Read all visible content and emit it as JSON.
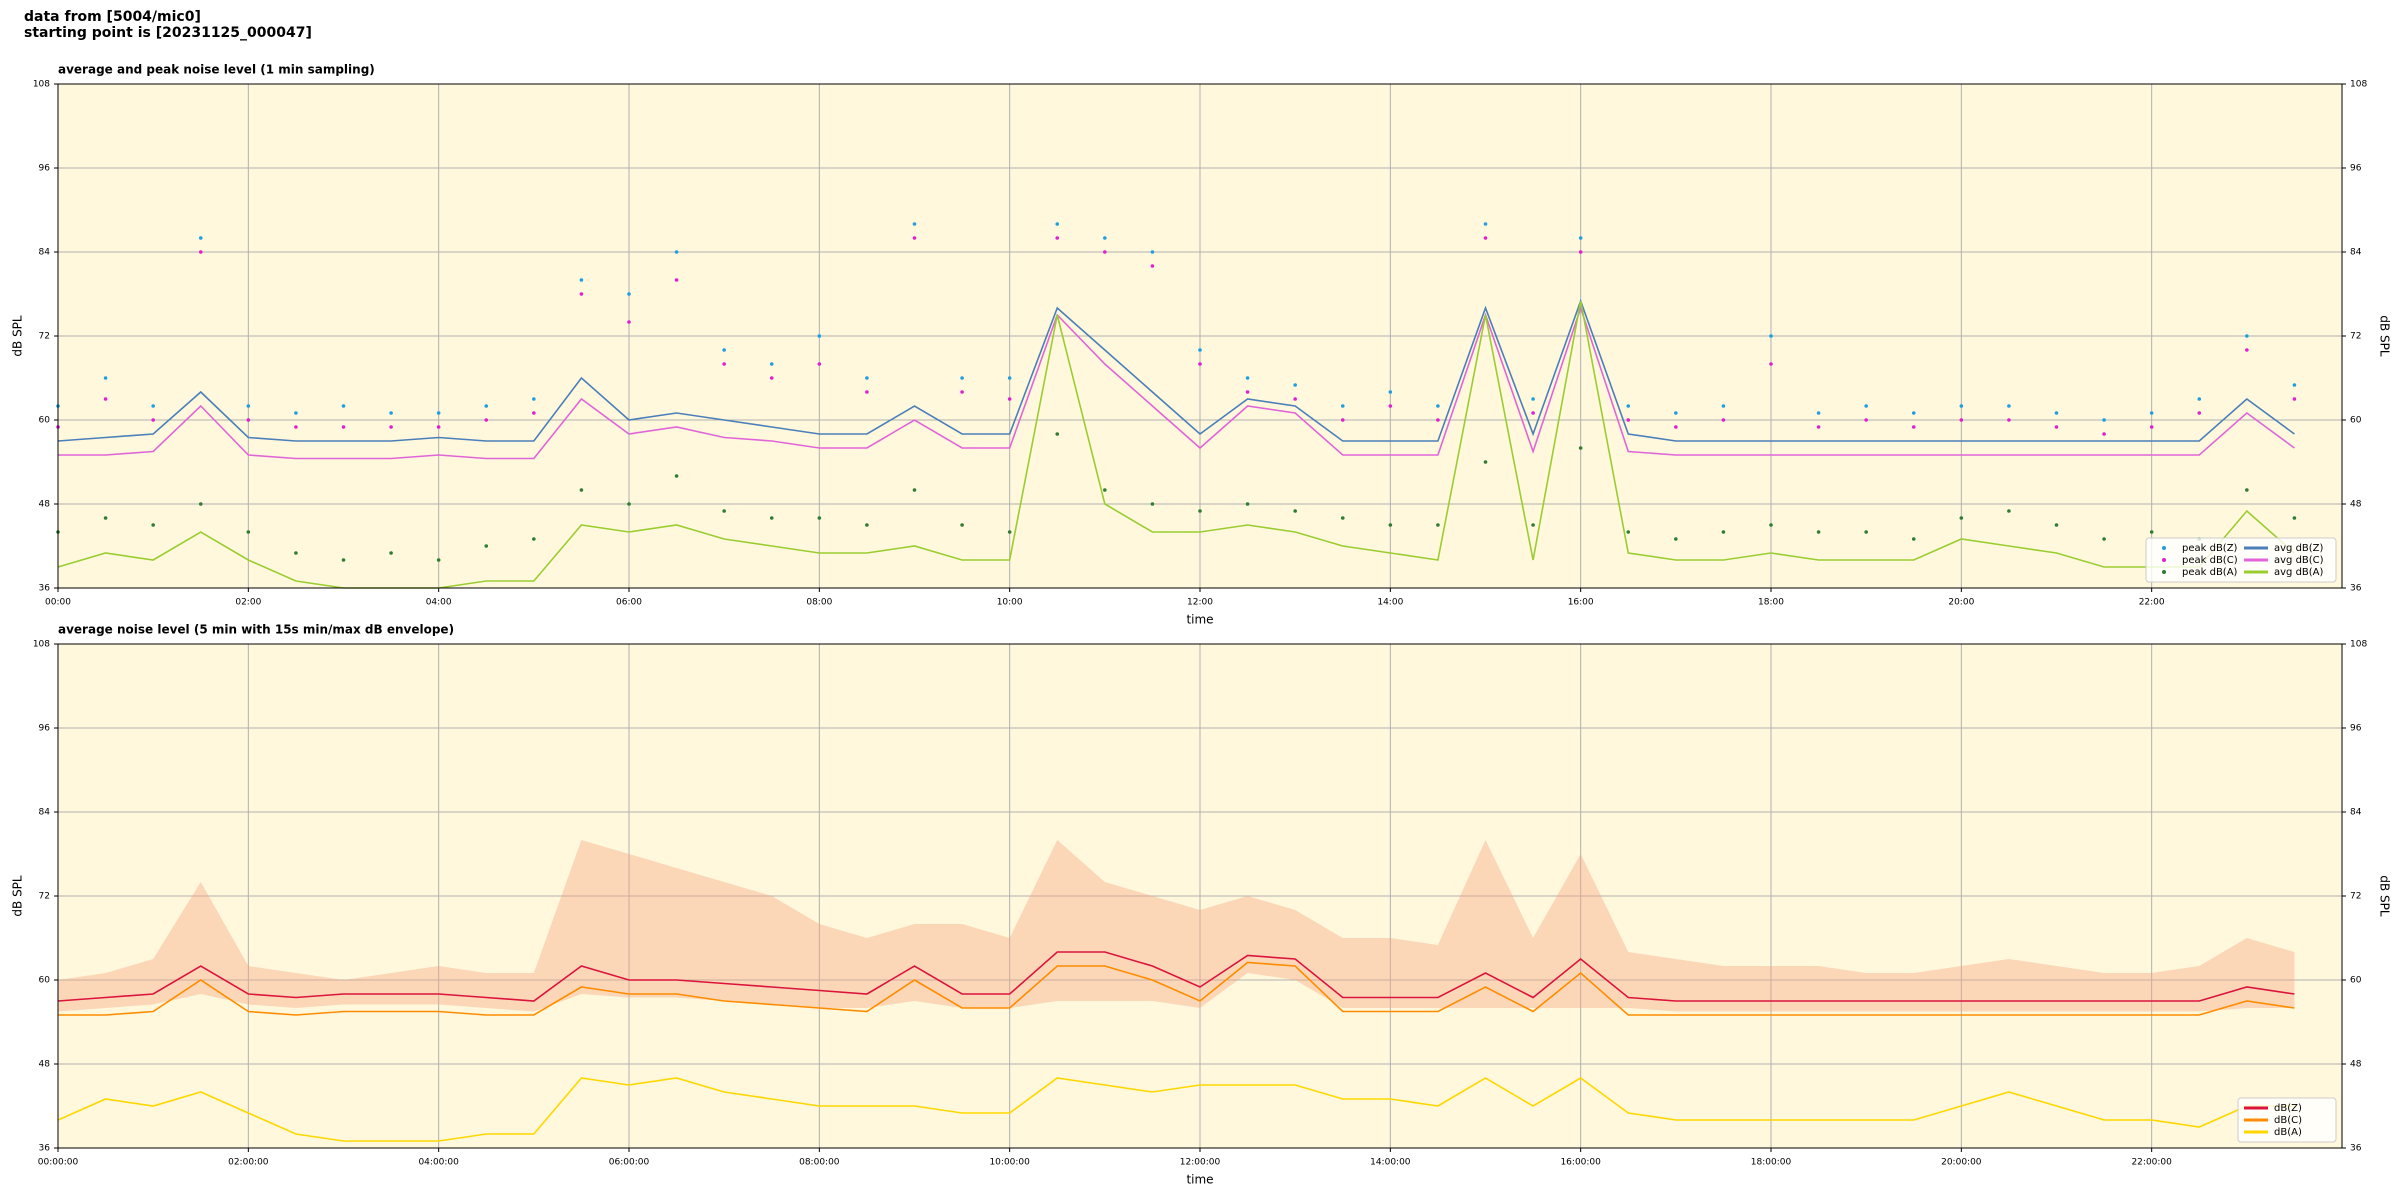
{
  "header": {
    "line1": "data from [5004/mic0]",
    "line2": "starting point is [20231125_000047]"
  },
  "chart_data": [
    {
      "type": "line",
      "title": "average and peak noise level (1 min sampling)",
      "xlabel": "time",
      "ylabel": "dB SPL",
      "x": [
        0,
        0.5,
        1,
        1.5,
        2,
        2.5,
        3,
        3.5,
        4,
        4.5,
        5,
        5.5,
        6,
        6.5,
        7,
        7.5,
        8,
        8.5,
        9,
        9.5,
        10,
        10.5,
        11,
        11.5,
        12,
        12.5,
        13,
        13.5,
        14,
        14.5,
        15,
        15.5,
        16,
        16.5,
        17,
        17.5,
        18,
        18.5,
        19,
        19.5,
        20,
        20.5,
        21,
        21.5,
        22,
        22.5,
        23,
        23.5
      ],
      "xlim": [
        0,
        24
      ],
      "xticks": [
        {
          "value": 0,
          "label": "00:00"
        },
        {
          "value": 2,
          "label": "02:00"
        },
        {
          "value": 4,
          "label": "04:00"
        },
        {
          "value": 6,
          "label": "06:00"
        },
        {
          "value": 8,
          "label": "08:00"
        },
        {
          "value": 10,
          "label": "10:00"
        },
        {
          "value": 12,
          "label": "12:00"
        },
        {
          "value": 14,
          "label": "14:00"
        },
        {
          "value": 16,
          "label": "16:00"
        },
        {
          "value": 18,
          "label": "18:00"
        },
        {
          "value": 20,
          "label": "20:00"
        },
        {
          "value": 22,
          "label": "22:00"
        }
      ],
      "ylim": [
        36,
        108
      ],
      "yticks": [
        36,
        48,
        60,
        72,
        84,
        96,
        108
      ],
      "grid": true,
      "legend": "lower right",
      "series": [
        {
          "name": "peak dB(Z)",
          "kind": "dot",
          "color": "#1f9fe0",
          "values": [
            62,
            66,
            62,
            86,
            62,
            61,
            62,
            61,
            61,
            62,
            63,
            80,
            78,
            84,
            70,
            68,
            72,
            66,
            88,
            66,
            66,
            88,
            86,
            84,
            70,
            66,
            65,
            62,
            64,
            62,
            88,
            63,
            86,
            62,
            61,
            62,
            72,
            61,
            62,
            61,
            62,
            62,
            61,
            60,
            61,
            63,
            72,
            65
          ]
        },
        {
          "name": "peak dB(C)",
          "kind": "dot",
          "color": "#e020d0",
          "values": [
            59,
            63,
            60,
            84,
            60,
            59,
            59,
            59,
            59,
            60,
            61,
            78,
            74,
            80,
            68,
            66,
            68,
            64,
            86,
            64,
            63,
            86,
            84,
            82,
            68,
            64,
            63,
            60,
            62,
            60,
            86,
            61,
            84,
            60,
            59,
            60,
            68,
            59,
            60,
            59,
            60,
            60,
            59,
            58,
            59,
            61,
            70,
            63
          ]
        },
        {
          "name": "peak dB(A)",
          "kind": "dot",
          "color": "#2e7d32",
          "values": [
            44,
            46,
            45,
            48,
            44,
            41,
            40,
            41,
            40,
            42,
            43,
            50,
            48,
            52,
            47,
            46,
            46,
            45,
            50,
            45,
            44,
            58,
            50,
            48,
            47,
            48,
            47,
            46,
            45,
            45,
            54,
            45,
            56,
            44,
            43,
            44,
            45,
            44,
            44,
            43,
            46,
            47,
            45,
            43,
            44,
            43,
            50,
            46
          ]
        },
        {
          "name": "avg dB(Z)",
          "kind": "line",
          "color": "#4a7fba",
          "values": [
            57,
            57.5,
            58,
            64,
            57.5,
            57,
            57,
            57,
            57.5,
            57,
            57,
            66,
            60,
            61,
            60,
            59,
            58,
            58,
            62,
            58,
            58,
            76,
            70,
            64,
            58,
            63,
            62,
            57,
            57,
            57,
            76,
            58,
            77,
            58,
            57,
            57,
            57,
            57,
            57,
            57,
            57,
            57,
            57,
            57,
            57,
            57,
            63,
            58
          ]
        },
        {
          "name": "avg dB(C)",
          "kind": "line",
          "color": "#e066d8",
          "values": [
            55,
            55,
            55.5,
            62,
            55,
            54.5,
            54.5,
            54.5,
            55,
            54.5,
            54.5,
            63,
            58,
            59,
            57.5,
            57,
            56,
            56,
            60,
            56,
            56,
            75,
            68,
            62,
            56,
            62,
            61,
            55,
            55,
            55,
            75,
            55.5,
            76,
            55.5,
            55,
            55,
            55,
            55,
            55,
            55,
            55,
            55,
            55,
            55,
            55,
            55,
            61,
            56
          ]
        },
        {
          "name": "avg dB(A)",
          "kind": "line",
          "color": "#9acd32",
          "values": [
            39,
            41,
            40,
            44,
            40,
            37,
            36,
            36,
            36,
            37,
            37,
            45,
            44,
            45,
            43,
            42,
            41,
            41,
            42,
            40,
            40,
            75,
            48,
            44,
            44,
            45,
            44,
            42,
            41,
            40,
            75,
            40,
            77,
            41,
            40,
            40,
            41,
            40,
            40,
            40,
            43,
            42,
            41,
            39,
            39,
            39,
            47,
            41
          ]
        }
      ]
    },
    {
      "type": "line",
      "title": "average noise level (5 min with 15s min/max dB envelope)",
      "xlabel": "time",
      "ylabel": "dB SPL",
      "x": [
        0,
        0.5,
        1,
        1.5,
        2,
        2.5,
        3,
        3.5,
        4,
        4.5,
        5,
        5.5,
        6,
        6.5,
        7,
        7.5,
        8,
        8.5,
        9,
        9.5,
        10,
        10.5,
        11,
        11.5,
        12,
        12.5,
        13,
        13.5,
        14,
        14.5,
        15,
        15.5,
        16,
        16.5,
        17,
        17.5,
        18,
        18.5,
        19,
        19.5,
        20,
        20.5,
        21,
        21.5,
        22,
        22.5,
        23,
        23.5
      ],
      "xlim": [
        0,
        24
      ],
      "xticks": [
        {
          "value": 0,
          "label": "00:00:00"
        },
        {
          "value": 2,
          "label": "02:00:00"
        },
        {
          "value": 4,
          "label": "04:00:00"
        },
        {
          "value": 6,
          "label": "06:00:00"
        },
        {
          "value": 8,
          "label": "08:00:00"
        },
        {
          "value": 10,
          "label": "10:00:00"
        },
        {
          "value": 12,
          "label": "12:00:00"
        },
        {
          "value": 14,
          "label": "14:00:00"
        },
        {
          "value": 16,
          "label": "16:00:00"
        },
        {
          "value": 18,
          "label": "18:00:00"
        },
        {
          "value": 20,
          "label": "20:00:00"
        },
        {
          "value": 22,
          "label": "22:00:00"
        }
      ],
      "ylim": [
        36,
        108
      ],
      "yticks": [
        36,
        48,
        60,
        72,
        84,
        96,
        108
      ],
      "grid": true,
      "legend": "lower right",
      "band": {
        "color": "#f4a582",
        "low": [
          55.5,
          56,
          56.5,
          58,
          56.5,
          56,
          56.5,
          56.5,
          56.5,
          56,
          55.5,
          58,
          57.5,
          57.5,
          57,
          56.5,
          56,
          56,
          57,
          56,
          56,
          57,
          57,
          57,
          56,
          61,
          60,
          56,
          56,
          56,
          56,
          56,
          56,
          56,
          55.5,
          55.5,
          55.5,
          55.5,
          55.5,
          55.5,
          55.5,
          55.5,
          55.5,
          55.5,
          55.5,
          55.5,
          56,
          56
        ],
        "high": [
          60,
          61,
          63,
          74,
          62,
          61,
          60,
          61,
          62,
          61,
          61,
          80,
          78,
          76,
          74,
          72,
          68,
          66,
          68,
          68,
          66,
          80,
          74,
          72,
          70,
          72,
          70,
          66,
          66,
          65,
          80,
          66,
          78,
          64,
          63,
          62,
          62,
          62,
          61,
          61,
          62,
          63,
          62,
          61,
          61,
          62,
          66,
          64
        ]
      },
      "series": [
        {
          "name": "dB(Z)",
          "kind": "line",
          "color": "#dc143c",
          "values": [
            57,
            57.5,
            58,
            62,
            58,
            57.5,
            58,
            58,
            58,
            57.5,
            57,
            62,
            60,
            60,
            59.5,
            59,
            58.5,
            58,
            62,
            58,
            58,
            64,
            64,
            62,
            59,
            63.5,
            63,
            57.5,
            57.5,
            57.5,
            61,
            57.5,
            63,
            57.5,
            57,
            57,
            57,
            57,
            57,
            57,
            57,
            57,
            57,
            57,
            57,
            57,
            59,
            58
          ]
        },
        {
          "name": "dB(C)",
          "kind": "line",
          "color": "#ff8c00",
          "values": [
            55,
            55,
            55.5,
            60,
            55.5,
            55,
            55.5,
            55.5,
            55.5,
            55,
            55,
            59,
            58,
            58,
            57,
            56.5,
            56,
            55.5,
            60,
            56,
            56,
            62,
            62,
            60,
            57,
            62.5,
            62,
            55.5,
            55.5,
            55.5,
            59,
            55.5,
            61,
            55,
            55,
            55,
            55,
            55,
            55,
            55,
            55,
            55,
            55,
            55,
            55,
            55,
            57,
            56
          ]
        },
        {
          "name": "dB(A)",
          "kind": "line",
          "color": "#ffd700",
          "values": [
            40,
            43,
            42,
            44,
            41,
            38,
            37,
            37,
            37,
            38,
            38,
            46,
            45,
            46,
            44,
            43,
            42,
            42,
            42,
            41,
            41,
            46,
            45,
            44,
            45,
            45,
            45,
            43,
            43,
            42,
            46,
            42,
            46,
            41,
            40,
            40,
            40,
            40,
            40,
            40,
            42,
            44,
            42,
            40,
            40,
            39,
            42,
            42
          ]
        }
      ]
    }
  ]
}
